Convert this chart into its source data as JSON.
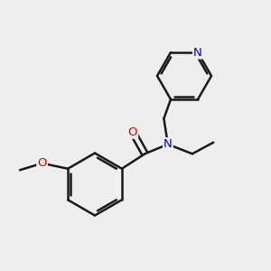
{
  "bg_color": "#eeeeee",
  "atom_colors": {
    "N": "#0000cc",
    "O": "#dd0000"
  },
  "bond_color": "#1a1a1a",
  "bond_width": 1.8,
  "figsize": [
    3.0,
    3.0
  ],
  "dpi": 100,
  "xlim": [
    0,
    10
  ],
  "ylim": [
    0,
    10
  ]
}
